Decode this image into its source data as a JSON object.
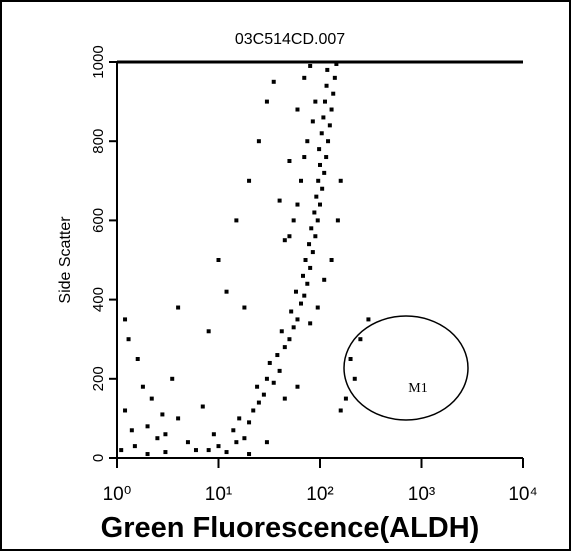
{
  "chart_data": {
    "type": "scatter",
    "title": "03C514CD.007",
    "x_label": "Green Fluorescence(ALDH)",
    "y_label": "Side Scatter",
    "x_scale": "log",
    "xlim": [
      1,
      10000
    ],
    "ylim": [
      0,
      1000
    ],
    "xticks": [
      {
        "value": 1,
        "label": "10⁰"
      },
      {
        "value": 10,
        "label": "10¹"
      },
      {
        "value": 100,
        "label": "10²"
      },
      {
        "value": 1000,
        "label": "10³"
      },
      {
        "value": 10000,
        "label": "10⁴"
      }
    ],
    "yticks": [
      0,
      200,
      400,
      600,
      800,
      1000
    ],
    "color": "#000000",
    "gate_label": "M1",
    "x": [
      8,
      10,
      12,
      15,
      9,
      14,
      18,
      20,
      16,
      22,
      25,
      28,
      24,
      30,
      35,
      40,
      32,
      38,
      45,
      50,
      42,
      55,
      60,
      52,
      65,
      70,
      58,
      75,
      68,
      80,
      72,
      85,
      78,
      90,
      82,
      95,
      88,
      100,
      92,
      105,
      96,
      110,
      100,
      115,
      98,
      120,
      104,
      125,
      108,
      130,
      112,
      135,
      116,
      140,
      118,
      145,
      80,
      70,
      90,
      85,
      75,
      70,
      65,
      60,
      55,
      50,
      160,
      150,
      130,
      110,
      95,
      80,
      20,
      30,
      45,
      60,
      1.5,
      2,
      1.2,
      3,
      1.8,
      2.5,
      1.1,
      4,
      2.2,
      1.6,
      3.5,
      1.3,
      5,
      6,
      2.8,
      1.4,
      2,
      3,
      7,
      1.2,
      4,
      8,
      10,
      15,
      20,
      25,
      30,
      35,
      40,
      45,
      12,
      18,
      200,
      180,
      250,
      220,
      300,
      160,
      50,
      60
    ],
    "values": [
      20,
      30,
      15,
      40,
      60,
      70,
      50,
      90,
      100,
      120,
      140,
      160,
      180,
      200,
      190,
      220,
      240,
      260,
      280,
      300,
      320,
      330,
      350,
      370,
      390,
      410,
      420,
      440,
      460,
      480,
      500,
      520,
      540,
      560,
      580,
      600,
      620,
      640,
      660,
      680,
      700,
      720,
      740,
      760,
      780,
      800,
      820,
      840,
      860,
      880,
      900,
      920,
      940,
      960,
      980,
      995,
      990,
      960,
      900,
      850,
      800,
      760,
      700,
      640,
      600,
      560,
      700,
      600,
      500,
      450,
      380,
      340,
      10,
      40,
      150,
      180,
      30,
      80,
      120,
      60,
      180,
      50,
      20,
      100,
      150,
      250,
      200,
      300,
      40,
      20,
      110,
      70,
      10,
      15,
      130,
      350,
      380,
      320,
      500,
      600,
      700,
      800,
      900,
      950,
      650,
      550,
      420,
      380,
      250,
      150,
      300,
      200,
      350,
      120,
      750,
      880
    ]
  }
}
